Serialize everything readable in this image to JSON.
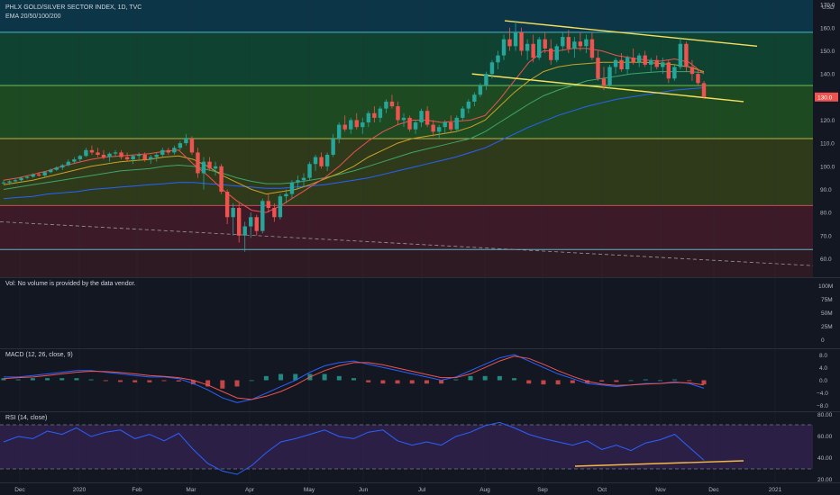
{
  "header": {
    "title": "PHLX GOLD/SILVER SECTOR INDEX, 1D, TVC",
    "indicator": "EMA 20/50/100/200",
    "currency": "USD"
  },
  "colors": {
    "background": "#131722",
    "up_candle": "#26a69a",
    "down_candle": "#ef5350",
    "ema20": "#ef5350",
    "ema50": "#c9a227",
    "ema100": "#3fa66b",
    "ema200": "#2962ff",
    "trendline": "#f5e05c",
    "macd_line": "#2962ff",
    "signal_line": "#ef5350",
    "rsi_line": "#2962ff",
    "price_tag": "#ef5350"
  },
  "volume_panel": {
    "label": "Vol: No volume is provided by the data vendor.",
    "ticks": [
      "100M",
      "75M",
      "50M",
      "25M",
      "0"
    ]
  },
  "macd_panel": {
    "label": "MACD (12, 26, close, 9)",
    "ticks": [
      "8.0",
      "4.0",
      "0.0",
      "−4.0",
      "−8.0"
    ]
  },
  "rsi_panel": {
    "label": "RSI (14, close)",
    "ticks": [
      "80.00",
      "60.00",
      "40.00",
      "20.00"
    ]
  },
  "time_axis": [
    "Dec",
    "2020",
    "Feb",
    "Mar",
    "Apr",
    "May",
    "Jun",
    "Jul",
    "Aug",
    "Sep",
    "Oct",
    "Nov",
    "Dec",
    "2021"
  ],
  "chart_data": {
    "type": "candlestick",
    "title": "PHLX GOLD/SILVER SECTOR INDEX, 1D, TVC",
    "price_axis": {
      "ticks": [
        "170.0",
        "160.0",
        "150.0",
        "140.0",
        "130.0",
        "120.0",
        "110.0",
        "100.0",
        "90.0",
        "80.0",
        "70.0",
        "60.0"
      ],
      "range": [
        52,
        172
      ],
      "last_price_label": "130.0"
    },
    "time_range": [
      "2019-11-15",
      "2021-01-10"
    ],
    "price_zones": [
      {
        "from": 158,
        "to": 172,
        "color": "#0c3547"
      },
      {
        "from": 135,
        "to": 158,
        "color": "#0f4231"
      },
      {
        "from": 112,
        "to": 135,
        "color": "#1e4a22"
      },
      {
        "from": 83,
        "to": 112,
        "color": "#2e3a1a"
      },
      {
        "from": 64,
        "to": 83,
        "color": "#3d1a27"
      },
      {
        "from": 52,
        "to": 64,
        "color": "#2e1a22"
      }
    ],
    "zone_lines": [
      {
        "price": 158,
        "color": "#4fb3c9"
      },
      {
        "price": 135,
        "color": "#6fbf5a"
      },
      {
        "price": 112,
        "color": "#b9b24a"
      },
      {
        "price": 83,
        "color": "#c94a5a"
      },
      {
        "price": 64,
        "color": "#5ab3c9"
      }
    ],
    "candles": [
      [
        93,
        94,
        92,
        93
      ],
      [
        93,
        94,
        92,
        93.5
      ],
      [
        93.5,
        95,
        93,
        94
      ],
      [
        94,
        95.5,
        93.5,
        95
      ],
      [
        95,
        96,
        94.5,
        95.5
      ],
      [
        95.5,
        97,
        95,
        96.5
      ],
      [
        96.5,
        97.5,
        95.5,
        96
      ],
      [
        96,
        98,
        95.5,
        97.5
      ],
      [
        97.5,
        99,
        97,
        98.5
      ],
      [
        98.5,
        100,
        98,
        99.5
      ],
      [
        99.5,
        101,
        98.5,
        100.5
      ],
      [
        100.5,
        103,
        100,
        102
      ],
      [
        102,
        104,
        101,
        103
      ],
      [
        103,
        105,
        102,
        104.5
      ],
      [
        104.5,
        108,
        104,
        107
      ],
      [
        107,
        109,
        105,
        106
      ],
      [
        106,
        108,
        104,
        105
      ],
      [
        105,
        107,
        103,
        104
      ],
      [
        104,
        106,
        102,
        105.5
      ],
      [
        105.5,
        107,
        104,
        106
      ],
      [
        106,
        107,
        103,
        104
      ],
      [
        104,
        106,
        102,
        103
      ],
      [
        103,
        105,
        101,
        104.5
      ],
      [
        104.5,
        106,
        103,
        105
      ],
      [
        105,
        106,
        102,
        103
      ],
      [
        103,
        105,
        101,
        104
      ],
      [
        104,
        106,
        102,
        105
      ],
      [
        105,
        108,
        104,
        107
      ],
      [
        107,
        108,
        105,
        106
      ],
      [
        106,
        109,
        105,
        108
      ],
      [
        108,
        111,
        107,
        110
      ],
      [
        110,
        114,
        109,
        112
      ],
      [
        112,
        113,
        105,
        106
      ],
      [
        106,
        108,
        95,
        97
      ],
      [
        97,
        104,
        90,
        102
      ],
      [
        102,
        104,
        98,
        99
      ],
      [
        99,
        102,
        96,
        100
      ],
      [
        100,
        101,
        88,
        89
      ],
      [
        89,
        90,
        75,
        78
      ],
      [
        78,
        84,
        70,
        82
      ],
      [
        82,
        84,
        67,
        70
      ],
      [
        70,
        76,
        63,
        74
      ],
      [
        74,
        80,
        69,
        78
      ],
      [
        78,
        79,
        70,
        72
      ],
      [
        72,
        86,
        71,
        85
      ],
      [
        85,
        88,
        80,
        82
      ],
      [
        82,
        84,
        76,
        78
      ],
      [
        78,
        88,
        77,
        87
      ],
      [
        87,
        90,
        84,
        88
      ],
      [
        88,
        94,
        86,
        93
      ],
      [
        93,
        96,
        90,
        94
      ],
      [
        94,
        97,
        91,
        95
      ],
      [
        95,
        102,
        94,
        101
      ],
      [
        101,
        105,
        98,
        104
      ],
      [
        104,
        106,
        99,
        100
      ],
      [
        100,
        106,
        98,
        105
      ],
      [
        105,
        114,
        104,
        112
      ],
      [
        112,
        119,
        110,
        118
      ],
      [
        118,
        122,
        115,
        116
      ],
      [
        116,
        121,
        114,
        120
      ],
      [
        120,
        123,
        116,
        117
      ],
      [
        117,
        121,
        114,
        119
      ],
      [
        119,
        124,
        117,
        123
      ],
      [
        123,
        126,
        119,
        121
      ],
      [
        121,
        126,
        119,
        125
      ],
      [
        125,
        129,
        123,
        128
      ],
      [
        128,
        131,
        125,
        126
      ],
      [
        126,
        128,
        118,
        120
      ],
      [
        120,
        123,
        117,
        121
      ],
      [
        121,
        122,
        115,
        116
      ],
      [
        116,
        120,
        114,
        119
      ],
      [
        119,
        125,
        117,
        124
      ],
      [
        124,
        126,
        117,
        118
      ],
      [
        118,
        120,
        113,
        115
      ],
      [
        115,
        118,
        112,
        117
      ],
      [
        117,
        120,
        114,
        119
      ],
      [
        119,
        122,
        115,
        116
      ],
      [
        116,
        122,
        115,
        121
      ],
      [
        121,
        126,
        120,
        125
      ],
      [
        125,
        129,
        123,
        128
      ],
      [
        128,
        132,
        126,
        131
      ],
      [
        131,
        136,
        130,
        135
      ],
      [
        135,
        141,
        133,
        140
      ],
      [
        140,
        146,
        138,
        145
      ],
      [
        145,
        150,
        142,
        148
      ],
      [
        148,
        157,
        146,
        155
      ],
      [
        155,
        160,
        150,
        152
      ],
      [
        152,
        163,
        150,
        158
      ],
      [
        158,
        160,
        148,
        150
      ],
      [
        150,
        155,
        146,
        153
      ],
      [
        153,
        157,
        145,
        147
      ],
      [
        147,
        156,
        146,
        155
      ],
      [
        155,
        158,
        149,
        151
      ],
      [
        151,
        155,
        144,
        146
      ],
      [
        146,
        153,
        145,
        152
      ],
      [
        152,
        158,
        150,
        156
      ],
      [
        156,
        159,
        149,
        151
      ],
      [
        151,
        156,
        147,
        154
      ],
      [
        154,
        158,
        150,
        152
      ],
      [
        152,
        157,
        149,
        155
      ],
      [
        155,
        158,
        146,
        147
      ],
      [
        147,
        150,
        137,
        138
      ],
      [
        138,
        143,
        133,
        135
      ],
      [
        135,
        144,
        134,
        143
      ],
      [
        143,
        147,
        140,
        146
      ],
      [
        146,
        149,
        141,
        142
      ],
      [
        142,
        148,
        140,
        147
      ],
      [
        147,
        151,
        144,
        145
      ],
      [
        145,
        149,
        143,
        148
      ],
      [
        148,
        150,
        143,
        144
      ],
      [
        144,
        147,
        141,
        146
      ],
      [
        146,
        148,
        142,
        143
      ],
      [
        143,
        147,
        140,
        145
      ],
      [
        145,
        146,
        136,
        138
      ],
      [
        138,
        144,
        137,
        143
      ],
      [
        143,
        156,
        142,
        153
      ],
      [
        153,
        154,
        141,
        143
      ],
      [
        143,
        146,
        137,
        140
      ],
      [
        140,
        142,
        135,
        136
      ],
      [
        136,
        137,
        129,
        130
      ]
    ],
    "ema20": [
      94,
      95,
      96.5,
      98,
      100,
      101.5,
      103,
      104,
      104.5,
      105,
      105.5,
      106.5,
      107,
      101,
      96,
      90,
      85,
      81,
      80,
      83,
      87,
      91,
      95,
      100,
      106,
      111,
      115,
      118,
      120,
      120,
      119,
      119.5,
      120,
      122,
      129,
      137,
      145,
      150,
      150,
      151,
      151,
      150,
      148,
      147,
      146,
      145.5,
      146.5,
      145,
      140
    ],
    "ema50": [
      92,
      93,
      94,
      95.5,
      97,
      98.5,
      100,
      101,
      102,
      102.5,
      103,
      104,
      104.5,
      103,
      100,
      96,
      93,
      90,
      88,
      89,
      90,
      92,
      94.5,
      97,
      100,
      104,
      107,
      110,
      112,
      113,
      114,
      115,
      117,
      120,
      126,
      132,
      137,
      141,
      143,
      144,
      144.5,
      145,
      145,
      145,
      145,
      144.5,
      144,
      143,
      141
    ],
    "ema100": [
      90,
      91,
      92,
      93,
      94,
      95,
      96,
      97,
      98,
      98.5,
      99,
      100,
      100.5,
      100,
      98.5,
      97,
      95,
      93.5,
      92.5,
      92.5,
      93,
      94,
      95,
      96.5,
      98,
      100,
      102,
      104,
      106,
      107.5,
      109,
      110.5,
      112,
      115,
      119,
      123,
      127,
      130.5,
      133,
      135,
      137,
      138,
      139,
      140,
      140.5,
      141,
      141,
      141,
      140.5
    ],
    "ema200": [
      86,
      86.5,
      87,
      88,
      88.5,
      89,
      90,
      90.5,
      91,
      91.5,
      92,
      92.5,
      93,
      93,
      92.5,
      92,
      91.5,
      91,
      90.5,
      90.5,
      91,
      91.5,
      92,
      93,
      94,
      95,
      96.5,
      98,
      99.5,
      101,
      102.5,
      104,
      106,
      108,
      111,
      114,
      117,
      119.5,
      122,
      124,
      126,
      127.5,
      129,
      130,
      131,
      132,
      133,
      133.5,
      134
    ],
    "trendlines": [
      {
        "from": [
          "2020-08-03",
          163
        ],
        "to": [
          "2020-12-12",
          152
        ],
        "color": "#f5e05c"
      },
      {
        "from": [
          "2020-07-17",
          140
        ],
        "to": [
          "2020-12-05",
          128
        ],
        "color": "#f5e05c"
      },
      {
        "from": [
          "2019-11-15",
          76
        ],
        "to": [
          "2021-01-10",
          57
        ],
        "color": "#9a9aa3",
        "dashed": true
      }
    ],
    "macd": [
      1,
      1,
      1.5,
      2,
      2.5,
      3,
      3,
      2.5,
      2,
      1.5,
      1,
      1,
      0.5,
      -1,
      -3,
      -5.5,
      -7,
      -6,
      -4,
      -2,
      0,
      2.5,
      4.5,
      5.5,
      6,
      5,
      4,
      3,
      2,
      1,
      0,
      1,
      3,
      5,
      7,
      8,
      6,
      4,
      2,
      0.5,
      -1,
      -1.5,
      -2,
      -1.5,
      -1,
      -1,
      -0.5,
      -1,
      -2.5
    ],
    "signal": [
      0.5,
      0.8,
      1,
      1.5,
      2,
      2.5,
      2.8,
      2.7,
      2.4,
      2,
      1.5,
      1.2,
      0.8,
      0,
      -1.5,
      -3.5,
      -5.5,
      -6,
      -5,
      -3.5,
      -1.5,
      1,
      3,
      4.5,
      5.5,
      5.5,
      4.8,
      3.8,
      2.8,
      1.8,
      0.8,
      0.8,
      2,
      4,
      6,
      7.5,
      6.8,
      5,
      3,
      1.2,
      -0.3,
      -1.2,
      -1.6,
      -1.5,
      -1.2,
      -1,
      -0.7,
      -0.8,
      -1.5
    ],
    "rsi": [
      55,
      60,
      58,
      65,
      62,
      68,
      60,
      64,
      66,
      58,
      62,
      56,
      63,
      48,
      35,
      28,
      25,
      33,
      45,
      55,
      58,
      62,
      66,
      60,
      58,
      64,
      66,
      56,
      52,
      55,
      52,
      60,
      64,
      70,
      73,
      68,
      62,
      58,
      55,
      52,
      56,
      48,
      52,
      47,
      54,
      57,
      62,
      50,
      38
    ]
  }
}
